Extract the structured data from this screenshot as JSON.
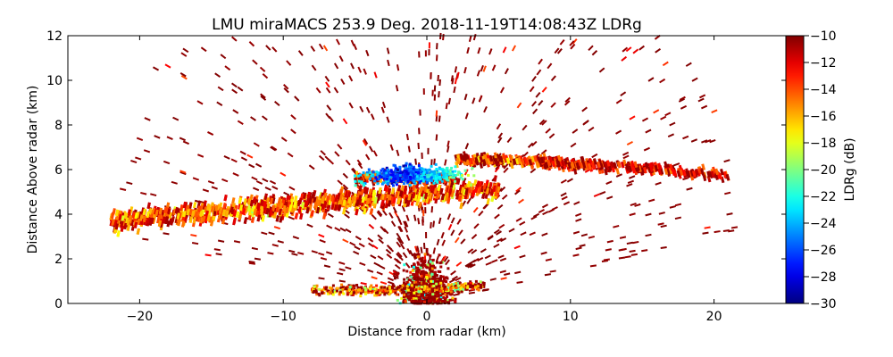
{
  "chart_data": {
    "type": "heatmap",
    "title": "LMU miraMACS 253.9 Deg. 2018-11-19T14:08:43Z  LDRg",
    "xlabel": "Distance from radar (km)",
    "ylabel": "Distance Above radar  (km)",
    "xlim": [
      -25,
      25
    ],
    "ylim": [
      0,
      12
    ],
    "xticks": [
      -20,
      -10,
      0,
      10,
      20
    ],
    "xtick_labels": [
      "−20",
      "−10",
      "0",
      "10",
      "20"
    ],
    "yticks": [
      0,
      2,
      4,
      6,
      8,
      10,
      12
    ],
    "ytick_labels": [
      "0",
      "2",
      "4",
      "6",
      "8",
      "10",
      "12"
    ],
    "colorbar": {
      "label": "LDRg (dB)",
      "colormap": "jet",
      "range": [
        -30,
        -10
      ],
      "ticks": [
        -10,
        -12,
        -14,
        -16,
        -18,
        -20,
        -22,
        -24,
        -26,
        -28,
        -30
      ],
      "tick_labels": [
        "−10",
        "−12",
        "−14",
        "−16",
        "−18",
        "−20",
        "−22",
        "−24",
        "−26",
        "−28",
        "−30"
      ]
    },
    "grid": false,
    "features": [
      {
        "name": "noise-speckle",
        "x_range": [
          -22,
          22
        ],
        "z_range": [
          0,
          12
        ],
        "ldr": -10.5
      },
      {
        "name": "cloud-layer-lower",
        "x_start": -22,
        "x_end": 5,
        "z_start": 3.7,
        "z_end": 5.2,
        "thickness_km": 0.9,
        "ldr_mean": -15
      },
      {
        "name": "cloud-layer-upper",
        "x_start": -5,
        "x_end": 21,
        "z_start": 5.6,
        "z_end": 5.8,
        "thickness_km": 0.5,
        "ldr_mean": -14
      },
      {
        "name": "low-ldr-core",
        "x_center": -2,
        "z_center": 5.8,
        "ldr_min": -27
      },
      {
        "name": "near-radar-clutter",
        "x_center": 0,
        "z_max": 3.5,
        "ldr_mean": -11
      },
      {
        "name": "boundary-layer",
        "x_range": [
          -8,
          4
        ],
        "z_range": [
          0,
          0.8
        ],
        "ldr_mean": -16
      }
    ]
  }
}
